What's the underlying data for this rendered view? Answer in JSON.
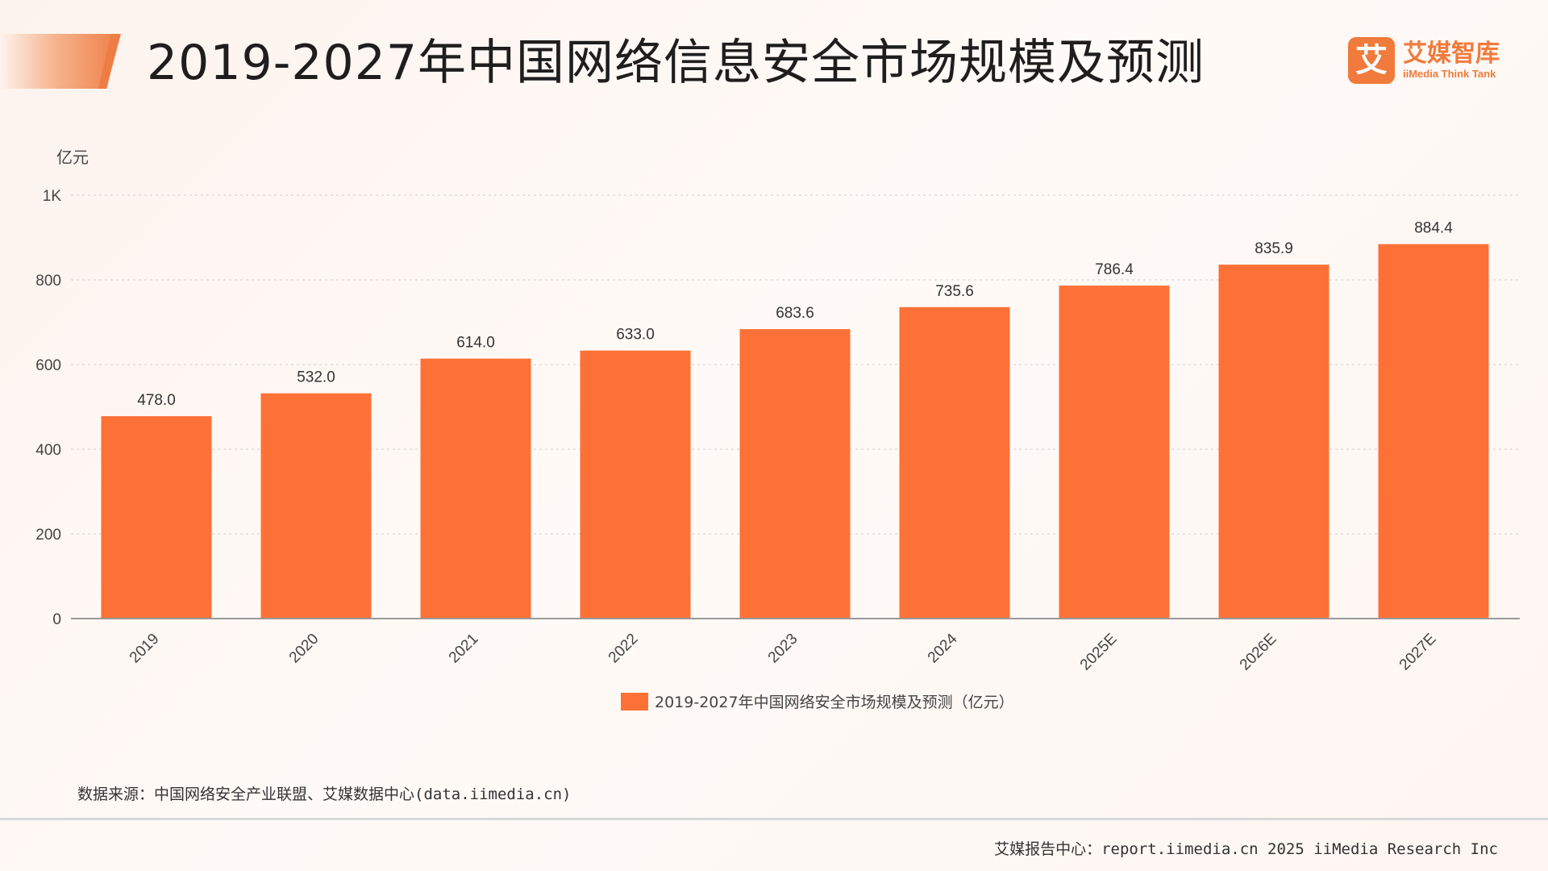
{
  "header": {
    "title": "2019-2027年中国网络信息安全市场规模及预测"
  },
  "logo": {
    "mark": "艾",
    "name_cn": "艾媒智库",
    "name_en": "iiMedia Think Tank"
  },
  "colors": {
    "bar": "#fd7137",
    "accent": "#ee7d45"
  },
  "chart_data": {
    "type": "bar",
    "ylabel": "亿元",
    "ylim": [
      0,
      1000
    ],
    "y_ticks": [
      {
        "value": 0,
        "label": "0"
      },
      {
        "value": 200,
        "label": "200"
      },
      {
        "value": 400,
        "label": "400"
      },
      {
        "value": 600,
        "label": "600"
      },
      {
        "value": 800,
        "label": "800"
      },
      {
        "value": 1000,
        "label": "1K"
      }
    ],
    "categories": [
      "2019",
      "2020",
      "2021",
      "2022",
      "2023",
      "2024",
      "2025E",
      "2026E",
      "2027E"
    ],
    "values": [
      478.0,
      532.0,
      614.0,
      633.0,
      683.6,
      735.6,
      786.4,
      835.9,
      884.4
    ],
    "value_labels": [
      "478.0",
      "532.0",
      "614.0",
      "633.0",
      "683.6",
      "735.6",
      "786.4",
      "835.9",
      "884.4"
    ],
    "legend": "2019-2027年中国网络安全市场规模及预测（亿元）",
    "legend_position": "bottom-center",
    "grid": true
  },
  "source": "数据来源：中国网络安全产业联盟、艾媒数据中心(data.iimedia.cn)",
  "footer": "艾媒报告中心：report.iimedia.cn  2025 iiMedia Research Inc"
}
